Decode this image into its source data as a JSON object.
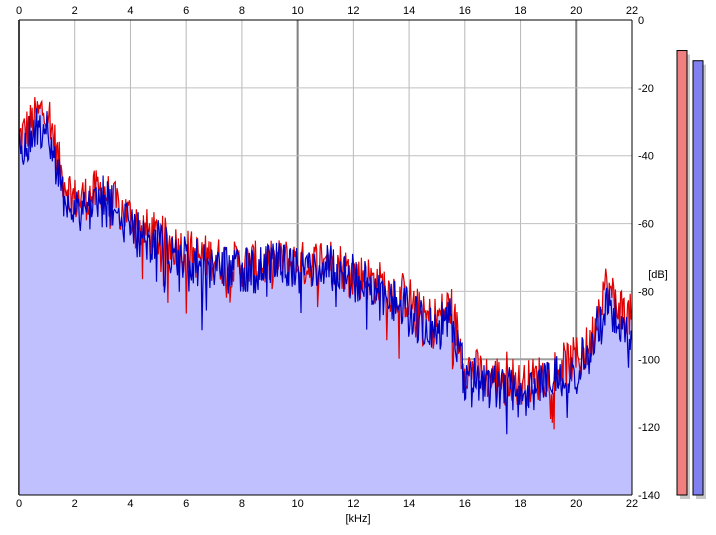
{
  "chart_data": {
    "type": "area",
    "title": "",
    "xlabel": "[kHz]",
    "ylabel": "[dB]",
    "xlim": [
      0,
      22
    ],
    "ylim": [
      -140,
      0
    ],
    "x_ticks": [
      "0",
      "2",
      "4",
      "6",
      "8",
      "10",
      "12",
      "14",
      "16",
      "18",
      "20",
      "22"
    ],
    "y_ticks": [
      "0",
      "-20",
      "-40",
      "-60",
      "-80",
      "-100",
      "-120",
      "-140"
    ],
    "grid": true,
    "legend": "none",
    "series": [
      {
        "color": "#e00000",
        "x": [
          0,
          0.5,
          1,
          1.5,
          2,
          2.5,
          3,
          3.5,
          4,
          4.5,
          5,
          5.5,
          6,
          6.5,
          7,
          7.5,
          8,
          8.5,
          9,
          9.5,
          10,
          10.5,
          11,
          11.5,
          12,
          12.5,
          13,
          13.5,
          14,
          14.5,
          15,
          15.5,
          16,
          16.5,
          17,
          17.5,
          18,
          18.5,
          19,
          19.5,
          20,
          20.5,
          21,
          21.5,
          22
        ],
        "values": [
          -35,
          -30,
          -25,
          -45,
          -53,
          -52,
          -50,
          -55,
          -58,
          -62,
          -64,
          -66,
          -68,
          -70,
          -70,
          -72,
          -72,
          -72,
          -72,
          -71,
          -72,
          -72,
          -70,
          -72,
          -75,
          -76,
          -78,
          -80,
          -82,
          -88,
          -88,
          -84,
          -102,
          -104,
          -106,
          -104,
          -108,
          -106,
          -104,
          -102,
          -100,
          -96,
          -78,
          -84,
          -88
        ]
      },
      {
        "color": "#0000c0",
        "x": [
          0,
          0.5,
          1,
          1.5,
          2,
          2.5,
          3,
          3.5,
          4,
          4.5,
          5,
          5.5,
          6,
          6.5,
          7,
          7.5,
          8,
          8.5,
          9,
          9.5,
          10,
          10.5,
          11,
          11.5,
          12,
          12.5,
          13,
          13.5,
          14,
          14.5,
          15,
          15.5,
          16,
          16.5,
          17,
          17.5,
          18,
          18.5,
          19,
          19.5,
          20,
          20.5,
          21,
          21.5,
          22
        ],
        "values": [
          -38,
          -33,
          -30,
          -50,
          -56,
          -55,
          -52,
          -57,
          -62,
          -64,
          -66,
          -68,
          -70,
          -72,
          -72,
          -74,
          -73,
          -74,
          -73,
          -72,
          -73,
          -73,
          -72,
          -74,
          -76,
          -78,
          -80,
          -82,
          -86,
          -90,
          -92,
          -86,
          -106,
          -106,
          -108,
          -106,
          -110,
          -108,
          -106,
          -104,
          -102,
          -98,
          -84,
          -88,
          -92
        ]
      }
    ],
    "fill_color": "#c0c0ff",
    "level_meters": [
      {
        "color": "#f08080",
        "level_db": -9
      },
      {
        "color": "#8080f0",
        "level_db": -12
      }
    ]
  }
}
